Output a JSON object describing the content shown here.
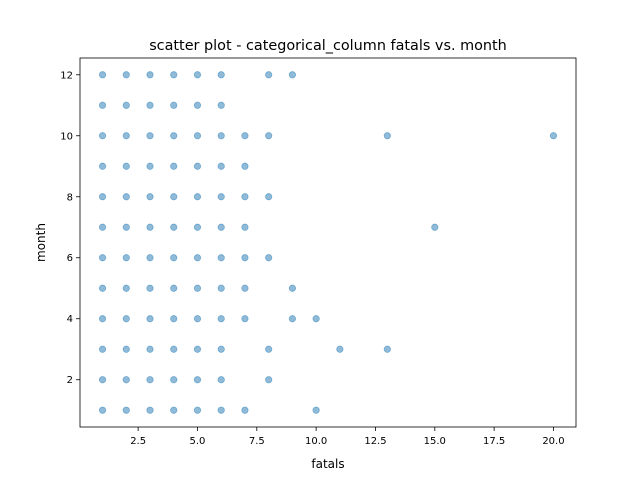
{
  "chart_data": {
    "type": "scatter",
    "title": "scatter plot - categorical_column fatals vs. month",
    "xlabel": "fatals",
    "ylabel": "month",
    "xlim": [
      0.05,
      20.95
    ],
    "ylim": [
      0.45,
      12.55
    ],
    "xticks": [
      2.5,
      5.0,
      7.5,
      10.0,
      12.5,
      15.0,
      17.5,
      20.0
    ],
    "xtick_labels": [
      "2.5",
      "5.0",
      "7.5",
      "10.0",
      "12.5",
      "15.0",
      "17.5",
      "20.0"
    ],
    "yticks": [
      2,
      4,
      6,
      8,
      10,
      12
    ],
    "ytick_labels": [
      "2",
      "4",
      "6",
      "8",
      "10",
      "12"
    ],
    "grid": false,
    "legend": "none",
    "marker_color": "#1f77b4",
    "series": [
      {
        "points": [
          [
            1,
            12
          ],
          [
            2,
            12
          ],
          [
            3,
            12
          ],
          [
            4,
            12
          ],
          [
            5,
            12
          ],
          [
            6,
            12
          ],
          [
            8,
            12
          ],
          [
            9,
            12
          ],
          [
            1,
            11
          ],
          [
            2,
            11
          ],
          [
            3,
            11
          ],
          [
            4,
            11
          ],
          [
            5,
            11
          ],
          [
            6,
            11
          ],
          [
            1,
            10
          ],
          [
            2,
            10
          ],
          [
            3,
            10
          ],
          [
            4,
            10
          ],
          [
            5,
            10
          ],
          [
            6,
            10
          ],
          [
            7,
            10
          ],
          [
            8,
            10
          ],
          [
            13,
            10
          ],
          [
            20,
            10
          ],
          [
            1,
            9
          ],
          [
            2,
            9
          ],
          [
            3,
            9
          ],
          [
            4,
            9
          ],
          [
            5,
            9
          ],
          [
            6,
            9
          ],
          [
            7,
            9
          ],
          [
            1,
            8
          ],
          [
            2,
            8
          ],
          [
            3,
            8
          ],
          [
            4,
            8
          ],
          [
            5,
            8
          ],
          [
            6,
            8
          ],
          [
            7,
            8
          ],
          [
            8,
            8
          ],
          [
            1,
            7
          ],
          [
            2,
            7
          ],
          [
            3,
            7
          ],
          [
            4,
            7
          ],
          [
            5,
            7
          ],
          [
            6,
            7
          ],
          [
            7,
            7
          ],
          [
            15,
            7
          ],
          [
            1,
            6
          ],
          [
            2,
            6
          ],
          [
            3,
            6
          ],
          [
            4,
            6
          ],
          [
            5,
            6
          ],
          [
            6,
            6
          ],
          [
            7,
            6
          ],
          [
            8,
            6
          ],
          [
            1,
            5
          ],
          [
            2,
            5
          ],
          [
            3,
            5
          ],
          [
            4,
            5
          ],
          [
            5,
            5
          ],
          [
            6,
            5
          ],
          [
            7,
            5
          ],
          [
            9,
            5
          ],
          [
            1,
            4
          ],
          [
            2,
            4
          ],
          [
            3,
            4
          ],
          [
            4,
            4
          ],
          [
            5,
            4
          ],
          [
            6,
            4
          ],
          [
            7,
            4
          ],
          [
            9,
            4
          ],
          [
            10,
            4
          ],
          [
            1,
            3
          ],
          [
            2,
            3
          ],
          [
            3,
            3
          ],
          [
            4,
            3
          ],
          [
            5,
            3
          ],
          [
            6,
            3
          ],
          [
            8,
            3
          ],
          [
            11,
            3
          ],
          [
            13,
            3
          ],
          [
            1,
            2
          ],
          [
            2,
            2
          ],
          [
            3,
            2
          ],
          [
            4,
            2
          ],
          [
            5,
            2
          ],
          [
            6,
            2
          ],
          [
            8,
            2
          ],
          [
            1,
            1
          ],
          [
            2,
            1
          ],
          [
            3,
            1
          ],
          [
            4,
            1
          ],
          [
            5,
            1
          ],
          [
            6,
            1
          ],
          [
            7,
            1
          ],
          [
            10,
            1
          ]
        ]
      }
    ]
  }
}
